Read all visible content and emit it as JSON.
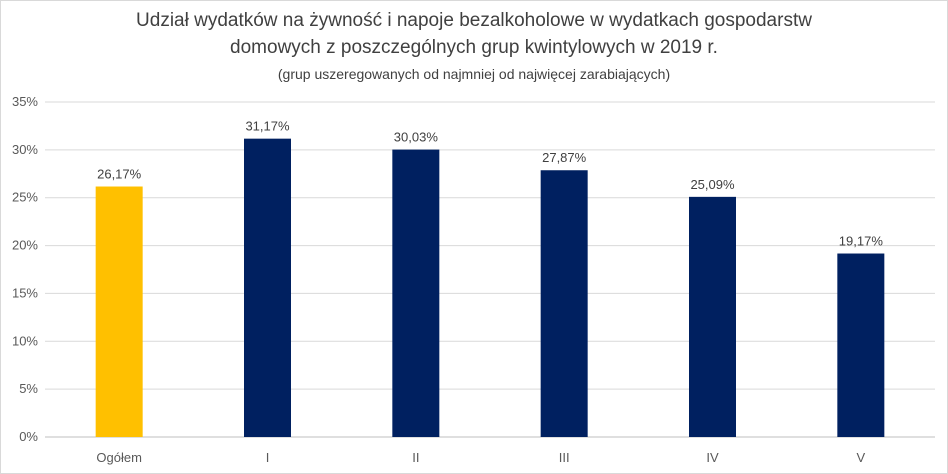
{
  "chart_data": {
    "type": "bar",
    "title_line1": "Udział wydatków na żywność i napoje bezalkoholowe w wydatkach gospodarstw",
    "title_line2": "domowych z poszczególnych grup kwintylowych w 2019 r.",
    "subtitle": "(grup uszeregowanych od najmniej od najwięcej zarabiających)",
    "categories": [
      "Ogółem",
      "I",
      "II",
      "III",
      "IV",
      "V"
    ],
    "values": [
      26.17,
      31.17,
      30.03,
      27.87,
      25.09,
      19.17
    ],
    "data_labels": [
      "26,17%",
      "31,17%",
      "30,03%",
      "27,87%",
      "25,09%",
      "19,17%"
    ],
    "bar_colors": [
      "#FFC000",
      "#002060",
      "#002060",
      "#002060",
      "#002060",
      "#002060"
    ],
    "ylim": [
      0,
      35
    ],
    "yticks": [
      0,
      5,
      10,
      15,
      20,
      25,
      30,
      35
    ],
    "ytick_labels": [
      "0%",
      "5%",
      "10%",
      "15%",
      "20%",
      "25%",
      "30%",
      "35%"
    ],
    "grid": true,
    "legend": "none",
    "xlabel": "",
    "ylabel": ""
  }
}
